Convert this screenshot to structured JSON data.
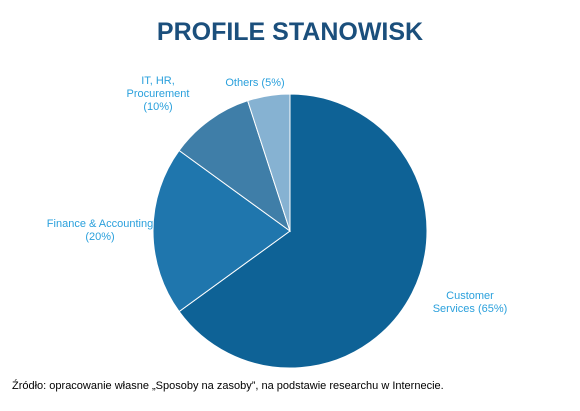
{
  "chart_data": {
    "type": "pie",
    "title": "PROFILE STANOWISK",
    "categories": [
      "Customer Services",
      "Finance & Accounting",
      "IT, HR, Procurement",
      "Others"
    ],
    "values": [
      65,
      20,
      10,
      5
    ],
    "value_labels": [
      "(65%)",
      "(20%)",
      "(10%)",
      "(5%)"
    ],
    "colors": [
      "#0e6296",
      "#1f76ad",
      "#3f7ea8",
      "#86b2d2"
    ],
    "source": "Źródło: opracowanie własne „Sposoby na zasoby”, na podstawie researchu w Internecie."
  }
}
